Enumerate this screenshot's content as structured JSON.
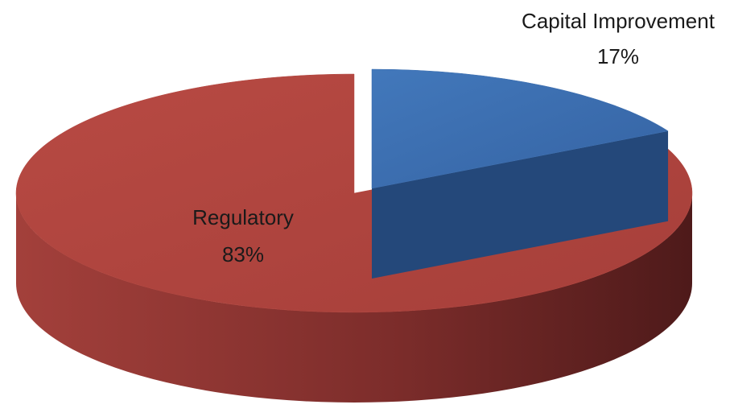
{
  "chart_data": {
    "type": "pie",
    "categories": [
      "Capital Improvement",
      "Regulatory"
    ],
    "values": [
      17,
      83
    ],
    "value_labels": [
      "17%",
      "83%"
    ],
    "colors": [
      "#3d6fb0",
      "#b3463f"
    ],
    "explode": [
      true,
      false
    ]
  }
}
